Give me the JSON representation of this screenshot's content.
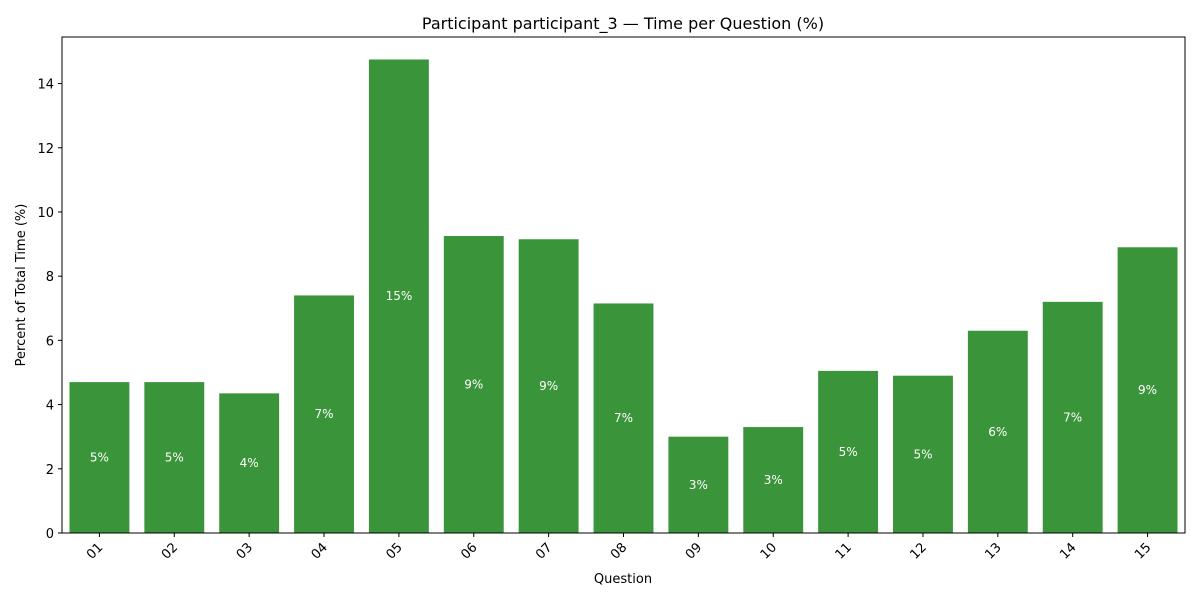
{
  "chart_data": {
    "type": "bar",
    "title": "Participant participant_3 — Time per Question (%)",
    "xlabel": "Question",
    "ylabel": "Percent of Total Time (%)",
    "categories": [
      "01",
      "02",
      "03",
      "04",
      "05",
      "06",
      "07",
      "08",
      "09",
      "10",
      "11",
      "12",
      "13",
      "14",
      "15"
    ],
    "values": [
      4.7,
      4.7,
      4.35,
      7.4,
      14.75,
      9.25,
      9.15,
      7.15,
      3.0,
      3.3,
      5.05,
      4.9,
      6.3,
      7.2,
      8.9
    ],
    "data_labels": [
      "5%",
      "5%",
      "4%",
      "7%",
      "15%",
      "9%",
      "9%",
      "7%",
      "3%",
      "3%",
      "5%",
      "5%",
      "6%",
      "7%",
      "9%"
    ],
    "ylim": [
      0,
      15.45
    ],
    "yticks": [
      0,
      2,
      4,
      6,
      8,
      10,
      12,
      14
    ],
    "grid": false,
    "bar_color": "#3a943a"
  }
}
